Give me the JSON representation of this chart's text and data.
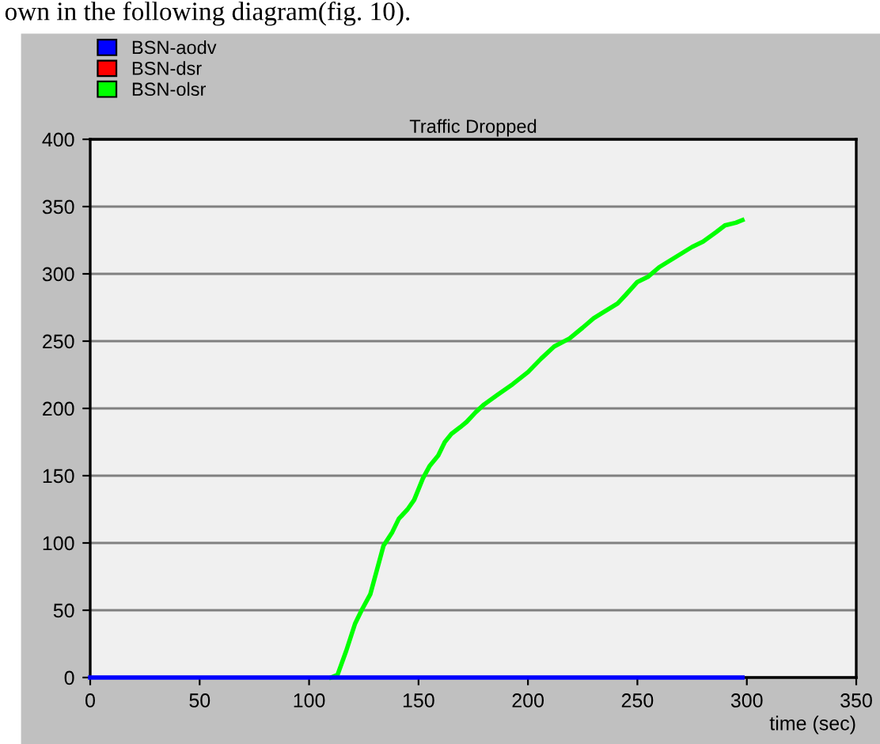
{
  "chart_data": {
    "type": "line",
    "title": "Traffic Dropped",
    "xlabel": "time (sec)",
    "legend": "top left",
    "grid": "y",
    "marker": "none",
    "line_style": "solid",
    "annotations": [
      "own in the following diagram(fig. 10)."
    ],
    "xlim": [
      0,
      350
    ],
    "ylim": [
      0,
      400
    ],
    "xticks": [
      0,
      50,
      100,
      150,
      200,
      250,
      300,
      350
    ],
    "yticks": [
      0,
      50,
      100,
      150,
      200,
      250,
      300,
      350,
      400
    ],
    "series": [
      {
        "name": "BSN-aodv",
        "color": "#0000ff",
        "x": [
          0,
          298
        ],
        "values": [
          0,
          0
        ]
      },
      {
        "name": "BSN-dsr",
        "color": "#ff0000"
      },
      {
        "name": "BSN-olsr",
        "color": "#00ff00",
        "x": [
          110,
          113,
          117,
          121,
          124,
          128,
          131,
          134,
          138,
          141,
          145,
          148,
          152,
          155,
          159,
          162,
          165,
          169,
          172,
          176,
          180,
          186,
          193,
          200,
          206,
          212,
          219,
          225,
          230,
          236,
          241,
          245,
          250,
          255,
          260,
          265,
          270,
          275,
          280,
          286,
          290,
          295,
          298
        ],
        "values": [
          0,
          2,
          20,
          40,
          50,
          62,
          80,
          98,
          108,
          118,
          125,
          132,
          148,
          157,
          165,
          175,
          181,
          186,
          190,
          197,
          203,
          210,
          218,
          227,
          237,
          246,
          252,
          260,
          267,
          273,
          278,
          285,
          294,
          298,
          305,
          310,
          315,
          320,
          324,
          331,
          336,
          338,
          340
        ]
      }
    ]
  }
}
